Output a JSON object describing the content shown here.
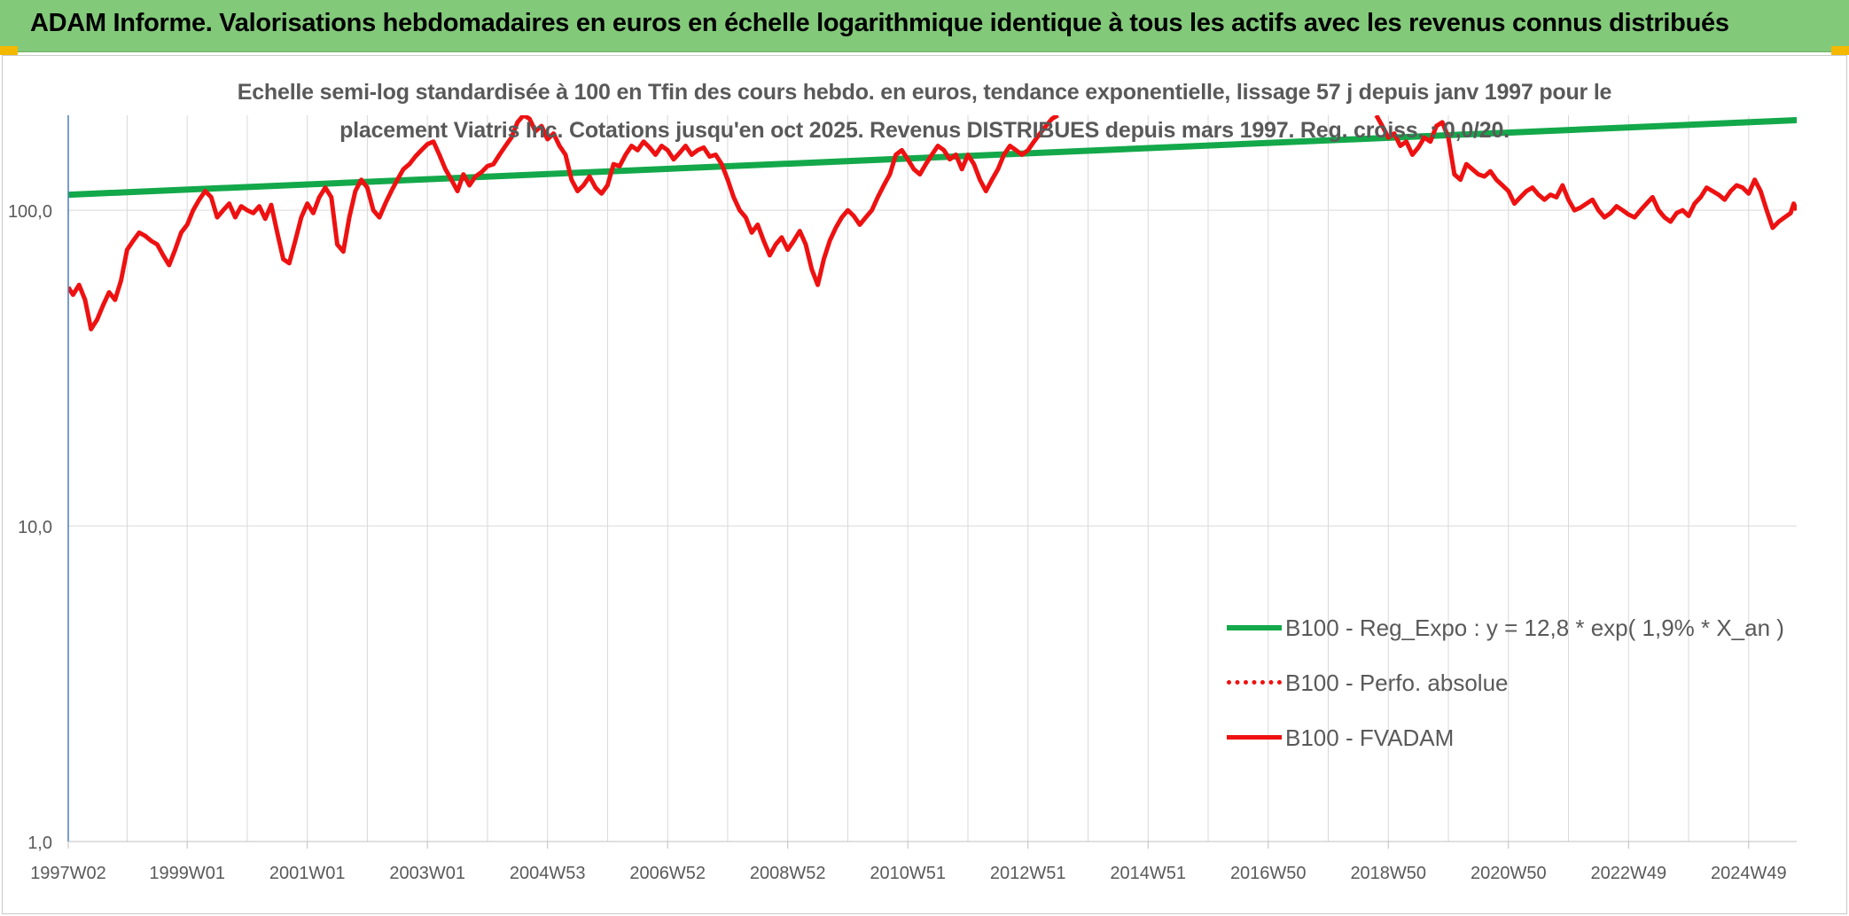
{
  "header": {
    "title": "ADAM Informe. Valorisations hebdomadaires en euros en échelle logarithmique identique à tous les actifs avec les revenus connus distribués"
  },
  "colors": {
    "header_bg": "#82c97a",
    "trend": "#13a84a",
    "fvadam": "#ee1111",
    "perfo": "#ee1111",
    "grid": "#d9d9d9",
    "axis_text": "#595959",
    "y_axis_line": "#4a7ebb"
  },
  "chart_data": {
    "type": "line",
    "subtitle_lines": [
      "Echelle semi-log standardisée à 100 en Tfin des cours hebdo. en euros, tendance exponentielle, lissage 57 j depuis janv 1997 pour le",
      "placement Viatris Inc. Cotations jusqu'en oct 2025. Revenus DISTRIBUES depuis mars 1997. Reg. croiss. : 0,0/20."
    ],
    "y_scale": "log",
    "ylim": [
      1,
      200
    ],
    "y_ticks": [
      {
        "value": 1,
        "label": "1,0"
      },
      {
        "value": 10,
        "label": "10,0"
      },
      {
        "value": 100,
        "label": "100,0"
      }
    ],
    "xlim": [
      1997.02,
      2025.8
    ],
    "x_ticks": [
      {
        "t": 1997.02,
        "label": "1997W02"
      },
      {
        "t": 1999.0,
        "label": "1999W01"
      },
      {
        "t": 2001.0,
        "label": "2001W01"
      },
      {
        "t": 2003.0,
        "label": "2003W01"
      },
      {
        "t": 2005.0,
        "label": "2004W53"
      },
      {
        "t": 2007.0,
        "label": "2006W52"
      },
      {
        "t": 2009.0,
        "label": "2008W52"
      },
      {
        "t": 2011.0,
        "label": "2010W51"
      },
      {
        "t": 2013.0,
        "label": "2012W51"
      },
      {
        "t": 2015.0,
        "label": "2014W51"
      },
      {
        "t": 2017.0,
        "label": "2016W50"
      },
      {
        "t": 2019.0,
        "label": "2018W50"
      },
      {
        "t": 2021.0,
        "label": "2020W50"
      },
      {
        "t": 2023.0,
        "label": "2022W49"
      },
      {
        "t": 2025.0,
        "label": "2024W49"
      }
    ],
    "legend_position": "bottom-right",
    "series": [
      {
        "name": "B100 - Reg_Expo : y = 12,8 * exp( 1,9% *  X_an )",
        "style": "solid-thick",
        "points": [
          [
            1997.02,
            112
          ],
          [
            2025.8,
            193
          ]
        ]
      },
      {
        "name": "B100 - Perfo. absolue",
        "style": "dotted",
        "points": []
      },
      {
        "name": "B100 - FVADAM",
        "style": "solid",
        "points": [
          [
            1997.02,
            57
          ],
          [
            1997.1,
            54
          ],
          [
            1997.2,
            58
          ],
          [
            1997.3,
            52
          ],
          [
            1997.4,
            42
          ],
          [
            1997.5,
            45
          ],
          [
            1997.6,
            50
          ],
          [
            1997.7,
            55
          ],
          [
            1997.8,
            52
          ],
          [
            1997.9,
            60
          ],
          [
            1998.0,
            75
          ],
          [
            1998.1,
            80
          ],
          [
            1998.2,
            85
          ],
          [
            1998.3,
            83
          ],
          [
            1998.4,
            80
          ],
          [
            1998.5,
            78
          ],
          [
            1998.6,
            72
          ],
          [
            1998.7,
            67
          ],
          [
            1998.8,
            75
          ],
          [
            1998.9,
            85
          ],
          [
            1999.0,
            90
          ],
          [
            1999.1,
            100
          ],
          [
            1999.2,
            108
          ],
          [
            1999.3,
            115
          ],
          [
            1999.4,
            110
          ],
          [
            1999.5,
            95
          ],
          [
            1999.6,
            100
          ],
          [
            1999.7,
            105
          ],
          [
            1999.8,
            95
          ],
          [
            1999.9,
            103
          ],
          [
            2000.0,
            100
          ],
          [
            2000.1,
            98
          ],
          [
            2000.2,
            103
          ],
          [
            2000.3,
            94
          ],
          [
            2000.4,
            104
          ],
          [
            2000.5,
            85
          ],
          [
            2000.6,
            70
          ],
          [
            2000.7,
            68
          ],
          [
            2000.8,
            80
          ],
          [
            2000.9,
            95
          ],
          [
            2001.0,
            105
          ],
          [
            2001.1,
            98
          ],
          [
            2001.2,
            110
          ],
          [
            2001.3,
            118
          ],
          [
            2001.4,
            110
          ],
          [
            2001.5,
            78
          ],
          [
            2001.6,
            74
          ],
          [
            2001.7,
            95
          ],
          [
            2001.8,
            115
          ],
          [
            2001.9,
            125
          ],
          [
            2002.0,
            118
          ],
          [
            2002.1,
            100
          ],
          [
            2002.2,
            95
          ],
          [
            2002.3,
            105
          ],
          [
            2002.4,
            115
          ],
          [
            2002.5,
            125
          ],
          [
            2002.6,
            135
          ],
          [
            2002.7,
            140
          ],
          [
            2002.8,
            148
          ],
          [
            2002.9,
            155
          ],
          [
            2003.0,
            162
          ],
          [
            2003.1,
            165
          ],
          [
            2003.2,
            150
          ],
          [
            2003.3,
            135
          ],
          [
            2003.4,
            125
          ],
          [
            2003.5,
            115
          ],
          [
            2003.6,
            130
          ],
          [
            2003.7,
            120
          ],
          [
            2003.8,
            128
          ],
          [
            2003.9,
            132
          ],
          [
            2004.0,
            138
          ],
          [
            2004.1,
            140
          ],
          [
            2004.2,
            150
          ],
          [
            2004.3,
            160
          ],
          [
            2004.4,
            170
          ],
          [
            2004.5,
            190
          ],
          [
            2004.6,
            200
          ],
          [
            2004.7,
            195
          ],
          [
            2004.8,
            178
          ],
          [
            2004.9,
            185
          ],
          [
            2005.0,
            168
          ],
          [
            2005.1,
            175
          ],
          [
            2005.2,
            160
          ],
          [
            2005.3,
            150
          ],
          [
            2005.4,
            125
          ],
          [
            2005.5,
            115
          ],
          [
            2005.6,
            120
          ],
          [
            2005.7,
            128
          ],
          [
            2005.8,
            118
          ],
          [
            2005.9,
            113
          ],
          [
            2006.0,
            120
          ],
          [
            2006.1,
            140
          ],
          [
            2006.2,
            138
          ],
          [
            2006.3,
            150
          ],
          [
            2006.4,
            160
          ],
          [
            2006.5,
            155
          ],
          [
            2006.6,
            165
          ],
          [
            2006.7,
            158
          ],
          [
            2006.8,
            150
          ],
          [
            2006.9,
            160
          ],
          [
            2007.0,
            155
          ],
          [
            2007.1,
            145
          ],
          [
            2007.2,
            152
          ],
          [
            2007.3,
            160
          ],
          [
            2007.4,
            150
          ],
          [
            2007.5,
            155
          ],
          [
            2007.6,
            158
          ],
          [
            2007.7,
            148
          ],
          [
            2007.8,
            150
          ],
          [
            2007.9,
            140
          ],
          [
            2008.0,
            125
          ],
          [
            2008.1,
            110
          ],
          [
            2008.2,
            100
          ],
          [
            2008.3,
            95
          ],
          [
            2008.4,
            85
          ],
          [
            2008.5,
            90
          ],
          [
            2008.6,
            80
          ],
          [
            2008.7,
            72
          ],
          [
            2008.8,
            78
          ],
          [
            2008.9,
            82
          ],
          [
            2009.0,
            75
          ],
          [
            2009.1,
            80
          ],
          [
            2009.2,
            86
          ],
          [
            2009.3,
            78
          ],
          [
            2009.4,
            65
          ],
          [
            2009.5,
            58
          ],
          [
            2009.6,
            70
          ],
          [
            2009.7,
            80
          ],
          [
            2009.8,
            88
          ],
          [
            2009.9,
            95
          ],
          [
            2010.0,
            100
          ],
          [
            2010.1,
            96
          ],
          [
            2010.2,
            90
          ],
          [
            2010.3,
            95
          ],
          [
            2010.4,
            100
          ],
          [
            2010.5,
            110
          ],
          [
            2010.6,
            120
          ],
          [
            2010.7,
            130
          ],
          [
            2010.8,
            150
          ],
          [
            2010.9,
            155
          ],
          [
            2011.0,
            145
          ],
          [
            2011.1,
            135
          ],
          [
            2011.2,
            130
          ],
          [
            2011.3,
            140
          ],
          [
            2011.4,
            150
          ],
          [
            2011.5,
            160
          ],
          [
            2011.6,
            155
          ],
          [
            2011.7,
            145
          ],
          [
            2011.8,
            150
          ],
          [
            2011.9,
            135
          ],
          [
            2012.0,
            150
          ],
          [
            2012.1,
            140
          ],
          [
            2012.2,
            125
          ],
          [
            2012.3,
            115
          ],
          [
            2012.4,
            125
          ],
          [
            2012.5,
            135
          ],
          [
            2012.6,
            150
          ],
          [
            2012.7,
            160
          ],
          [
            2012.8,
            155
          ],
          [
            2012.9,
            150
          ],
          [
            2013.0,
            155
          ],
          [
            2013.1,
            165
          ],
          [
            2013.2,
            175
          ],
          [
            2013.3,
            185
          ],
          [
            2013.4,
            195
          ],
          [
            2013.5,
            200
          ],
          [
            2018.8,
            200
          ],
          [
            2018.9,
            185
          ],
          [
            2019.0,
            170
          ],
          [
            2019.1,
            175
          ],
          [
            2019.2,
            160
          ],
          [
            2019.3,
            165
          ],
          [
            2019.4,
            150
          ],
          [
            2019.5,
            158
          ],
          [
            2019.6,
            170
          ],
          [
            2019.7,
            165
          ],
          [
            2019.8,
            185
          ],
          [
            2019.9,
            190
          ],
          [
            2020.0,
            170
          ],
          [
            2020.1,
            130
          ],
          [
            2020.2,
            125
          ],
          [
            2020.3,
            140
          ],
          [
            2020.4,
            135
          ],
          [
            2020.5,
            130
          ],
          [
            2020.6,
            128
          ],
          [
            2020.7,
            133
          ],
          [
            2020.8,
            125
          ],
          [
            2020.9,
            120
          ],
          [
            2021.0,
            115
          ],
          [
            2021.1,
            105
          ],
          [
            2021.2,
            110
          ],
          [
            2021.3,
            115
          ],
          [
            2021.4,
            118
          ],
          [
            2021.5,
            112
          ],
          [
            2021.6,
            108
          ],
          [
            2021.7,
            112
          ],
          [
            2021.8,
            110
          ],
          [
            2021.9,
            120
          ],
          [
            2022.0,
            108
          ],
          [
            2022.1,
            100
          ],
          [
            2022.2,
            102
          ],
          [
            2022.3,
            105
          ],
          [
            2022.4,
            108
          ],
          [
            2022.5,
            100
          ],
          [
            2022.6,
            95
          ],
          [
            2022.7,
            98
          ],
          [
            2022.8,
            103
          ],
          [
            2022.9,
            100
          ],
          [
            2023.0,
            97
          ],
          [
            2023.1,
            95
          ],
          [
            2023.2,
            100
          ],
          [
            2023.3,
            105
          ],
          [
            2023.4,
            110
          ],
          [
            2023.5,
            100
          ],
          [
            2023.6,
            95
          ],
          [
            2023.7,
            92
          ],
          [
            2023.8,
            98
          ],
          [
            2023.9,
            100
          ],
          [
            2024.0,
            96
          ],
          [
            2024.1,
            105
          ],
          [
            2024.2,
            110
          ],
          [
            2024.3,
            118
          ],
          [
            2024.4,
            115
          ],
          [
            2024.5,
            112
          ],
          [
            2024.6,
            108
          ],
          [
            2024.7,
            115
          ],
          [
            2024.8,
            120
          ],
          [
            2024.9,
            118
          ],
          [
            2025.0,
            113
          ],
          [
            2025.1,
            125
          ],
          [
            2025.2,
            115
          ],
          [
            2025.3,
            100
          ],
          [
            2025.4,
            88
          ],
          [
            2025.5,
            92
          ],
          [
            2025.6,
            95
          ],
          [
            2025.7,
            98
          ],
          [
            2025.75,
            105
          ],
          [
            2025.8,
            100
          ]
        ]
      }
    ]
  }
}
